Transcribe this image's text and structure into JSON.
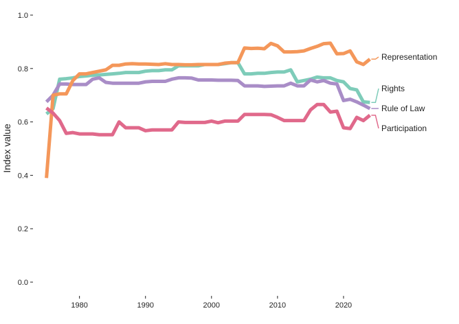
{
  "chart_data": {
    "type": "line",
    "title": "",
    "xlabel": "",
    "ylabel": "Index value",
    "xlim": [
      1974,
      2025
    ],
    "ylim": [
      0,
      1
    ],
    "x_ticks": [
      1980,
      1990,
      2000,
      2010,
      2020
    ],
    "y_ticks": [
      "0.0",
      "0.2",
      "0.4",
      "0.6",
      "0.8",
      "1.0"
    ],
    "grid": false,
    "legend": "direct labels at right end of lines",
    "x": [
      1975,
      1976,
      1977,
      1978,
      1979,
      1980,
      1981,
      1982,
      1983,
      1984,
      1985,
      1986,
      1987,
      1988,
      1989,
      1990,
      1991,
      1992,
      1993,
      1994,
      1995,
      1996,
      1997,
      1998,
      1999,
      2000,
      2001,
      2002,
      2003,
      2004,
      2005,
      2006,
      2007,
      2008,
      2009,
      2010,
      2011,
      2012,
      2013,
      2014,
      2015,
      2016,
      2017,
      2018,
      2019,
      2020,
      2021,
      2022,
      2023,
      2024
    ],
    "series": [
      {
        "name": "Representation",
        "color": "#F4975A",
        "values": [
          0.39,
          0.7,
          0.705,
          0.705,
          0.755,
          0.78,
          0.78,
          0.785,
          0.79,
          0.795,
          0.812,
          0.812,
          0.817,
          0.818,
          0.817,
          0.817,
          0.816,
          0.815,
          0.818,
          0.815,
          0.815,
          0.814,
          0.814,
          0.815,
          0.815,
          0.815,
          0.815,
          0.82,
          0.822,
          0.822,
          0.877,
          0.875,
          0.876,
          0.874,
          0.894,
          0.885,
          0.862,
          0.862,
          0.863,
          0.866,
          0.875,
          0.883,
          0.893,
          0.895,
          0.855,
          0.856,
          0.866,
          0.825,
          0.815,
          0.835
        ]
      },
      {
        "name": "Rights",
        "color": "#7ECCB9",
        "values": [
          0.63,
          0.65,
          0.76,
          0.762,
          0.765,
          0.77,
          0.772,
          0.775,
          0.776,
          0.778,
          0.78,
          0.782,
          0.785,
          0.785,
          0.785,
          0.79,
          0.792,
          0.792,
          0.795,
          0.795,
          0.81,
          0.81,
          0.81,
          0.81,
          0.815,
          0.815,
          0.815,
          0.818,
          0.822,
          0.822,
          0.78,
          0.78,
          0.782,
          0.782,
          0.785,
          0.787,
          0.787,
          0.795,
          0.75,
          0.755,
          0.76,
          0.768,
          0.765,
          0.765,
          0.755,
          0.75,
          0.725,
          0.72,
          0.675,
          0.673
        ]
      },
      {
        "name": "Rule of Law",
        "color": "#A98DC7",
        "values": [
          0.675,
          0.7,
          0.742,
          0.742,
          0.74,
          0.74,
          0.74,
          0.76,
          0.765,
          0.748,
          0.745,
          0.745,
          0.745,
          0.745,
          0.745,
          0.75,
          0.752,
          0.752,
          0.752,
          0.76,
          0.765,
          0.765,
          0.764,
          0.757,
          0.757,
          0.757,
          0.756,
          0.756,
          0.756,
          0.755,
          0.735,
          0.735,
          0.735,
          0.733,
          0.734,
          0.735,
          0.735,
          0.745,
          0.735,
          0.735,
          0.757,
          0.75,
          0.755,
          0.745,
          0.742,
          0.68,
          0.685,
          0.675,
          0.663,
          0.65
        ]
      },
      {
        "name": "Participation",
        "color": "#E0698B",
        "values": [
          0.652,
          0.633,
          0.605,
          0.557,
          0.56,
          0.555,
          0.555,
          0.555,
          0.552,
          0.552,
          0.552,
          0.6,
          0.578,
          0.578,
          0.578,
          0.567,
          0.57,
          0.57,
          0.57,
          0.57,
          0.6,
          0.598,
          0.598,
          0.598,
          0.598,
          0.603,
          0.597,
          0.603,
          0.603,
          0.603,
          0.628,
          0.628,
          0.628,
          0.628,
          0.627,
          0.617,
          0.605,
          0.605,
          0.605,
          0.605,
          0.645,
          0.665,
          0.665,
          0.637,
          0.64,
          0.578,
          0.575,
          0.617,
          0.605,
          0.625
        ]
      }
    ]
  }
}
